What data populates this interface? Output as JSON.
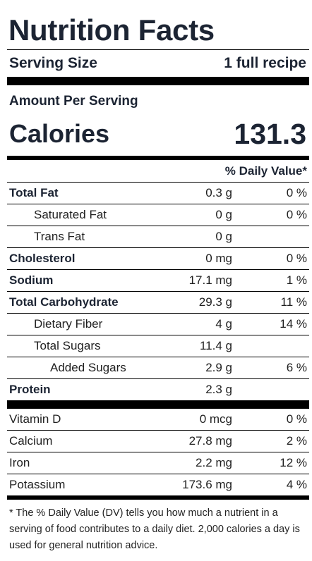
{
  "title": "Nutrition Facts",
  "serving": {
    "label": "Serving Size",
    "value": "1 full recipe"
  },
  "amount_per_serving": "Amount Per Serving",
  "calories": {
    "label": "Calories",
    "value": "131.3"
  },
  "dv_header": "% Daily Value*",
  "nutrients": [
    {
      "name": "Total Fat",
      "amount": "0.3 g",
      "dv": "0 %"
    },
    {
      "name": "Saturated Fat",
      "amount": "0 g",
      "dv": "0 %"
    },
    {
      "name": "Trans Fat",
      "amount": "0 g",
      "dv": ""
    },
    {
      "name": "Cholesterol",
      "amount": "0 mg",
      "dv": "0 %"
    },
    {
      "name": "Sodium",
      "amount": "17.1 mg",
      "dv": "1 %"
    },
    {
      "name": "Total Carbohydrate",
      "amount": "29.3 g",
      "dv": "11 %"
    },
    {
      "name": "Dietary Fiber",
      "amount": "4 g",
      "dv": "14 %"
    },
    {
      "name": "Total Sugars",
      "amount": "11.4 g",
      "dv": ""
    },
    {
      "name": "Added Sugars",
      "amount": "2.9 g",
      "dv": "6 %"
    },
    {
      "name": "Protein",
      "amount": "2.3 g",
      "dv": ""
    }
  ],
  "vitamins": [
    {
      "name": "Vitamin D",
      "amount": "0 mcg",
      "dv": "0 %"
    },
    {
      "name": "Calcium",
      "amount": "27.8 mg",
      "dv": "2 %"
    },
    {
      "name": "Iron",
      "amount": "2.2 mg",
      "dv": "12 %"
    },
    {
      "name": "Potassium",
      "amount": "173.6 mg",
      "dv": "4 %"
    }
  ],
  "footnote": "* The % Daily Value (DV) tells you how much a nutrient in a serving of food contributes to a daily diet. 2,000 calories a day is used for general nutrition advice."
}
